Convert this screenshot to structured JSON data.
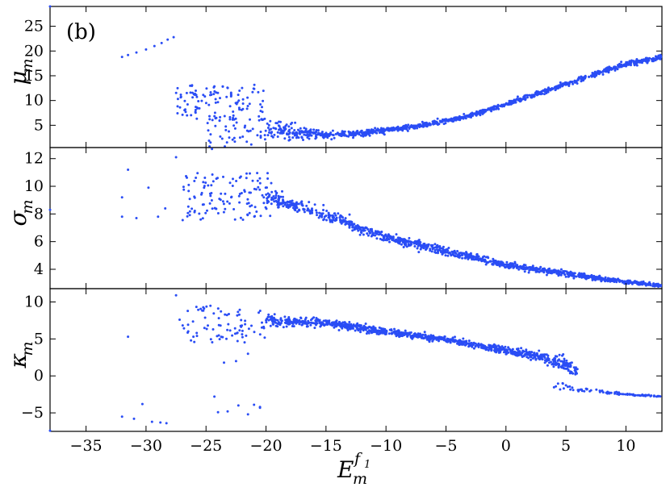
{
  "figure": {
    "panel_tag": "(b)",
    "xlabel_main": "E",
    "xlabel_sub": "m",
    "xlabel_sup": "f",
    "xlabel_sup_sub": "1",
    "marker_color": "#2a4df5"
  },
  "chart_data": [
    {
      "type": "scatter",
      "ylabel_main": "μ",
      "ylabel_sub": "m",
      "xlim": [
        -38,
        13
      ],
      "ylim": [
        0.5,
        29
      ],
      "yticks": [
        5,
        10,
        15,
        20,
        25
      ],
      "ytick_labels": [
        "5",
        "10",
        "15",
        "20",
        "25"
      ],
      "features": {
        "isolated": [
          [
            -38,
            29
          ],
          [
            -32,
            18.8
          ],
          [
            -31.5,
            19.2
          ],
          [
            -30.8,
            19.7
          ],
          [
            -30,
            20.3
          ],
          [
            -29.3,
            21
          ],
          [
            -28.7,
            21.6
          ],
          [
            -28.2,
            22.3
          ],
          [
            -27.7,
            22.8
          ]
        ],
        "cloud": [
          {
            "x": [
              -27.5,
              -20
            ],
            "y": [
              6,
              13.2
            ],
            "n": 110
          },
          {
            "x": [
              -25,
              -20
            ],
            "y": [
              0.5,
              7
            ],
            "n": 50
          }
        ],
        "bands": [
          {
            "pts": [
              [
                -20,
                4.2
              ],
              [
                -15,
                3.0
              ],
              [
                -12,
                3.4
              ],
              [
                -8,
                4.6
              ],
              [
                -4,
                6.3
              ],
              [
                0,
                9.2
              ],
              [
                4,
                12.5
              ],
              [
                8,
                15.8
              ],
              [
                10,
                17.3
              ],
              [
                13,
                18.7
              ]
            ],
            "spread": [
              2.0,
              0.7,
              0.5,
              0.4,
              0.4,
              0.4,
              0.4,
              0.5,
              0.5,
              0.4
            ],
            "n": 1100
          }
        ]
      }
    },
    {
      "type": "scatter",
      "ylabel_main": "σ",
      "ylabel_sub": "m",
      "xlim": [
        -38,
        13
      ],
      "ylim": [
        2.6,
        12.8
      ],
      "yticks": [
        4,
        6,
        8,
        10,
        12
      ],
      "ytick_labels": [
        "4",
        "6",
        "8",
        "10",
        "12"
      ],
      "features": {
        "isolated": [
          [
            -38,
            8.3
          ],
          [
            -32,
            9.2
          ],
          [
            -31.5,
            11.2
          ],
          [
            -30.8,
            7.7
          ],
          [
            -29.8,
            9.9
          ],
          [
            -29,
            7.8
          ],
          [
            -28.4,
            8.4
          ],
          [
            -27.5,
            12.1
          ],
          [
            -24.5,
            12.7
          ],
          [
            -32,
            7.8
          ]
        ],
        "cloud": [
          {
            "x": [
              -27,
              -19.5
            ],
            "y": [
              7.5,
              11
            ],
            "n": 120
          }
        ],
        "bands": [
          {
            "pts": [
              [
                -20,
                9.2
              ],
              [
                -17,
                8.5
              ],
              [
                -14,
                7.6
              ],
              [
                -10,
                6.3
              ],
              [
                -5,
                5.3
              ],
              [
                0,
                4.3
              ],
              [
                5,
                3.7
              ],
              [
                8,
                3.3
              ],
              [
                11,
                3.0
              ],
              [
                13,
                2.8
              ]
            ],
            "spread": [
              0.5,
              0.4,
              0.35,
              0.3,
              0.25,
              0.2,
              0.2,
              0.15,
              0.12,
              0.1
            ],
            "n": 1100
          }
        ]
      }
    },
    {
      "type": "scatter",
      "ylabel_main": "κ",
      "ylabel_sub": "m",
      "xlim": [
        -38,
        13
      ],
      "ylim": [
        -7.5,
        11.8
      ],
      "yticks": [
        -5,
        0,
        5,
        10
      ],
      "ytick_labels": [
        "−5",
        "0",
        "5",
        "10"
      ],
      "features": {
        "isolated": [
          [
            -38,
            -7.4
          ],
          [
            -32,
            -5.5
          ],
          [
            -31.5,
            5.3
          ],
          [
            -31,
            -5.8
          ],
          [
            -30.3,
            -3.8
          ],
          [
            -29.5,
            -6.2
          ],
          [
            -28.8,
            -6.3
          ],
          [
            -28.3,
            -6.4
          ],
          [
            -27.5,
            10.9
          ],
          [
            -24.3,
            -2.8
          ],
          [
            -24,
            -4.9
          ],
          [
            -23.2,
            -4.8
          ],
          [
            -22.3,
            -4.0
          ],
          [
            -21.5,
            -5.2
          ],
          [
            -21,
            -3.9
          ],
          [
            -20.5,
            -4.3
          ],
          [
            -21.5,
            3.0
          ],
          [
            -22.5,
            2.0
          ],
          [
            -23.5,
            1.8
          ],
          [
            -20.5,
            -4.2
          ]
        ],
        "cloud": [
          {
            "x": [
              -27.5,
              -20
            ],
            "y": [
              4.5,
              9.5
            ],
            "n": 80
          }
        ],
        "bands": [
          {
            "pts": [
              [
                -20,
                7.5
              ],
              [
                -15,
                7.2
              ],
              [
                -10,
                6.0
              ],
              [
                -5,
                4.9
              ],
              [
                0,
                3.4
              ],
              [
                3,
                2.5
              ],
              [
                5,
                1.5
              ],
              [
                6,
                0.5
              ]
            ],
            "spread": [
              0.6,
              0.5,
              0.4,
              0.35,
              0.4,
              0.6,
              0.9,
              0.6
            ],
            "n": 1000
          },
          {
            "pts": [
              [
                4,
                -1.0
              ],
              [
                6,
                -1.8
              ],
              [
                8,
                -2.2
              ],
              [
                10,
                -2.5
              ],
              [
                12,
                -2.7
              ],
              [
                13,
                -2.8
              ]
            ],
            "spread": [
              0.4,
              0.3,
              0.2,
              0.1,
              0.1,
              0.05
            ],
            "n": 90
          }
        ]
      }
    }
  ],
  "xaxis": {
    "ticks": [
      -35,
      -30,
      -25,
      -20,
      -15,
      -10,
      -5,
      0,
      5,
      10
    ],
    "tick_labels": [
      "−35",
      "−30",
      "−25",
      "−20",
      "−15",
      "−10",
      "−5",
      "0",
      "5",
      "10"
    ]
  }
}
